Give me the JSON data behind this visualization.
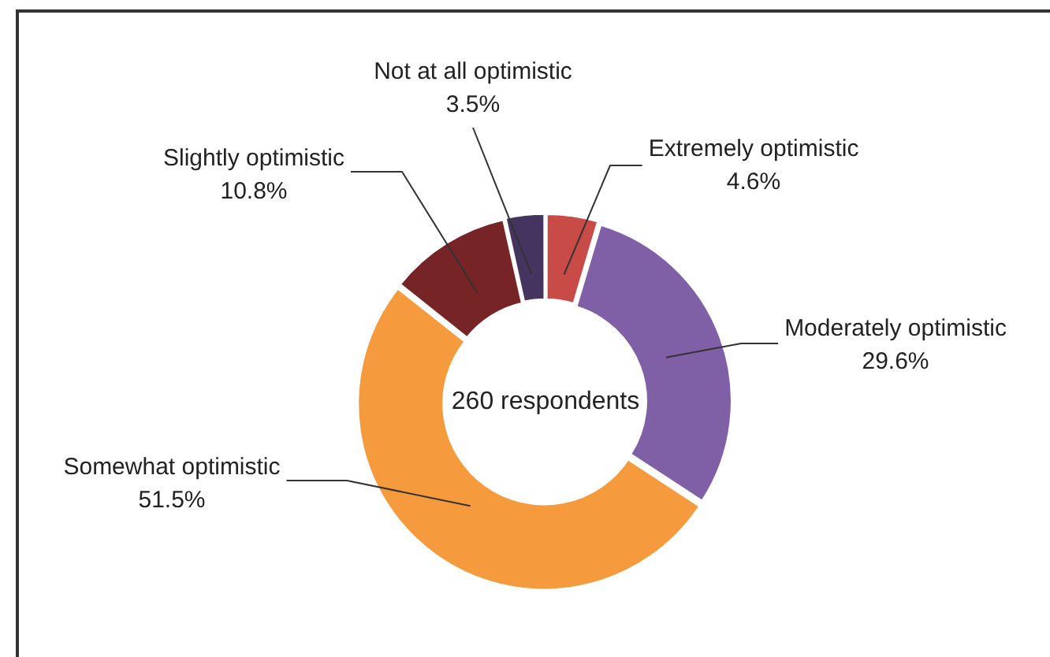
{
  "chart_data": {
    "type": "donut",
    "categories": [
      "Extremely optimistic",
      "Moderately optimistic",
      "Somewhat optimistic",
      "Slightly optimistic",
      "Not at all optimistic"
    ],
    "values": [
      4.6,
      29.6,
      51.5,
      10.8,
      3.5
    ],
    "value_labels": [
      "4.6%",
      "29.6%",
      "51.5%",
      "10.8%",
      "3.5%"
    ],
    "colors": [
      "#c84b47",
      "#7f5fa6",
      "#f69a3e",
      "#772427",
      "#44345f"
    ],
    "annotations": [
      "260 respondents"
    ],
    "legend": false
  }
}
